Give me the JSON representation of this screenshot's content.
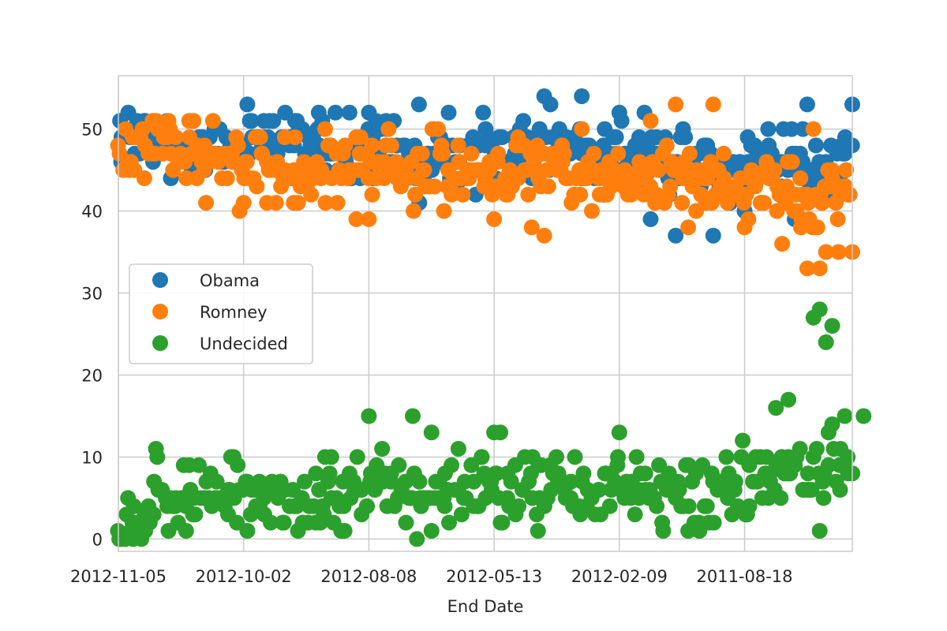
{
  "chart_data": {
    "type": "scatter",
    "title": "",
    "xlabel": "End Date",
    "ylabel": "",
    "ylim": [
      -1.5,
      56.5
    ],
    "xlim": [
      0,
      586
    ],
    "yticks": [
      0,
      10,
      20,
      30,
      40,
      50
    ],
    "xticks": [
      {
        "pos": 0,
        "label": "2012-11-05"
      },
      {
        "pos": 100,
        "label": "2012-10-02"
      },
      {
        "pos": 200,
        "label": "2012-08-08"
      },
      {
        "pos": 300,
        "label": "2012-05-13"
      },
      {
        "pos": 400,
        "label": "2012-02-09"
      },
      {
        "pos": 500,
        "label": "2011-08-18"
      }
    ],
    "grid": true,
    "legend_position": "center-left",
    "series": [
      {
        "name": "Obama",
        "color": "#1f77b4",
        "keypoints": [
          [
            0,
            49
          ],
          [
            20,
            49
          ],
          [
            40,
            48
          ],
          [
            60,
            47
          ],
          [
            80,
            47
          ],
          [
            100,
            48
          ],
          [
            120,
            49
          ],
          [
            140,
            49
          ],
          [
            160,
            48
          ],
          [
            180,
            47
          ],
          [
            200,
            47
          ],
          [
            220,
            47
          ],
          [
            240,
            46
          ],
          [
            260,
            47
          ],
          [
            280,
            47
          ],
          [
            300,
            47
          ],
          [
            320,
            47
          ],
          [
            340,
            47
          ],
          [
            360,
            48
          ],
          [
            380,
            47
          ],
          [
            400,
            47
          ],
          [
            420,
            46
          ],
          [
            440,
            46
          ],
          [
            460,
            46
          ],
          [
            480,
            45
          ],
          [
            500,
            46
          ],
          [
            520,
            46
          ],
          [
            540,
            46
          ],
          [
            560,
            45
          ],
          [
            586,
            47
          ]
        ],
        "spread": [
          2.5,
          3.5
        ],
        "outliers": [
          [
            240,
            53
          ],
          [
            340,
            54
          ],
          [
            370,
            54
          ],
          [
            550,
            53
          ],
          [
            586,
            53
          ],
          [
            200,
            52
          ],
          [
            160,
            52
          ],
          [
            400,
            52
          ],
          [
            420,
            52
          ],
          [
            345,
            53
          ],
          [
            475,
            37
          ],
          [
            445,
            37
          ],
          [
            15,
            51
          ],
          [
            105,
            51
          ],
          [
            220,
            51
          ],
          [
            540,
            39
          ],
          [
            500,
            40
          ],
          [
            425,
            39
          ]
        ]
      },
      {
        "name": "Romney",
        "color": "#ff7f0e",
        "keypoints": [
          [
            0,
            47
          ],
          [
            20,
            48
          ],
          [
            40,
            47
          ],
          [
            60,
            47
          ],
          [
            80,
            46
          ],
          [
            100,
            45
          ],
          [
            120,
            45
          ],
          [
            140,
            45
          ],
          [
            160,
            45
          ],
          [
            180,
            45
          ],
          [
            200,
            45
          ],
          [
            220,
            45
          ],
          [
            240,
            45
          ],
          [
            260,
            45
          ],
          [
            280,
            45
          ],
          [
            300,
            45
          ],
          [
            320,
            45
          ],
          [
            340,
            44
          ],
          [
            360,
            44
          ],
          [
            380,
            44
          ],
          [
            400,
            44
          ],
          [
            420,
            44
          ],
          [
            440,
            44
          ],
          [
            460,
            44
          ],
          [
            480,
            44
          ],
          [
            500,
            43
          ],
          [
            520,
            43
          ],
          [
            540,
            42
          ],
          [
            560,
            41
          ],
          [
            586,
            42
          ]
        ],
        "spread": [
          2.5,
          3.5
        ],
        "outliers": [
          [
            40,
            51
          ],
          [
            60,
            51
          ],
          [
            445,
            53
          ],
          [
            475,
            53
          ],
          [
            425,
            51
          ],
          [
            555,
            50
          ],
          [
            200,
            39
          ],
          [
            190,
            39
          ],
          [
            260,
            40
          ],
          [
            300,
            39
          ],
          [
            340,
            37
          ],
          [
            330,
            38
          ],
          [
            550,
            33
          ],
          [
            560,
            33
          ],
          [
            565,
            35
          ],
          [
            575,
            35
          ],
          [
            586,
            35
          ],
          [
            530,
            36
          ],
          [
            455,
            38
          ],
          [
            500,
            38
          ],
          [
            545,
            38
          ],
          [
            70,
            41
          ],
          [
            100,
            41
          ],
          [
            140,
            41
          ],
          [
            190,
            49
          ],
          [
            370,
            50
          ]
        ]
      },
      {
        "name": "Undecided",
        "color": "#2ca02c",
        "keypoints": [
          [
            0,
            3
          ],
          [
            20,
            3
          ],
          [
            40,
            4
          ],
          [
            60,
            5
          ],
          [
            80,
            5
          ],
          [
            100,
            5
          ],
          [
            120,
            5
          ],
          [
            140,
            5
          ],
          [
            160,
            5
          ],
          [
            180,
            5
          ],
          [
            200,
            6
          ],
          [
            220,
            6
          ],
          [
            240,
            6
          ],
          [
            260,
            6
          ],
          [
            280,
            6
          ],
          [
            300,
            6
          ],
          [
            320,
            6
          ],
          [
            340,
            6
          ],
          [
            360,
            6
          ],
          [
            380,
            6
          ],
          [
            400,
            6
          ],
          [
            420,
            6
          ],
          [
            440,
            6
          ],
          [
            460,
            6
          ],
          [
            480,
            6
          ],
          [
            500,
            7
          ],
          [
            520,
            8
          ],
          [
            540,
            8
          ],
          [
            560,
            9
          ],
          [
            586,
            10
          ]
        ],
        "spread": [
          3.0,
          4.0
        ],
        "outliers": [
          [
            555,
            27
          ],
          [
            560,
            28
          ],
          [
            565,
            24
          ],
          [
            570,
            26
          ],
          [
            200,
            15
          ],
          [
            235,
            15
          ],
          [
            580,
            15
          ],
          [
            595,
            15
          ],
          [
            525,
            16
          ],
          [
            535,
            17
          ],
          [
            300,
            13
          ],
          [
            305,
            13
          ],
          [
            250,
            13
          ],
          [
            400,
            13
          ],
          [
            30,
            11
          ],
          [
            90,
            10
          ],
          [
            92,
            10
          ],
          [
            165,
            10
          ],
          [
            170,
            10
          ],
          [
            10,
            1
          ],
          [
            40,
            1
          ],
          [
            250,
            1
          ],
          [
            335,
            1
          ],
          [
            435,
            1
          ],
          [
            455,
            1
          ],
          [
            560,
            1
          ]
        ]
      }
    ]
  }
}
